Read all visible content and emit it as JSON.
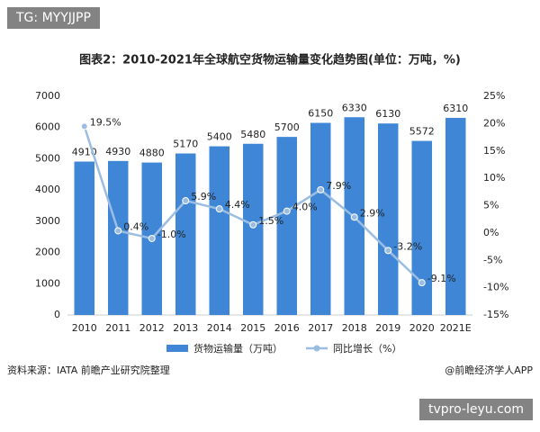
{
  "watermark": "TG: MYYJJPP",
  "source": "资料来源：IATA 前瞻产业研究院整理",
  "credit": "@前瞻经济学人APP",
  "footer_badge": "tvpro-leyu.com",
  "chart_data": {
    "type": "bar_line",
    "title": "图表2：2010-2021年全球航空货物运输量变化趋势图(单位：万吨，%)",
    "categories": [
      "2010",
      "2011",
      "2012",
      "2013",
      "2014",
      "2015",
      "2016",
      "2017",
      "2018",
      "2019",
      "2020",
      "2021E"
    ],
    "series": [
      {
        "name": "货物运输量（万吨）",
        "color": "#3f87d6",
        "type": "bar",
        "values": [
          4910,
          4930,
          4880,
          5170,
          5400,
          5480,
          5700,
          6150,
          6330,
          6130,
          5572,
          6310
        ]
      },
      {
        "name": "同比增长（%）",
        "color": "#9cbde2",
        "type": "line",
        "axis": "y2",
        "values": [
          19.5,
          0.4,
          -1.0,
          5.9,
          4.4,
          1.5,
          4.0,
          7.9,
          2.9,
          -3.2,
          -9.1,
          null
        ],
        "value_labels": [
          "19.5%",
          "0.4%",
          "-1.0%",
          "5.9%",
          "4.4%",
          "1.5%",
          "4.0%",
          "7.9%",
          "2.9%",
          "-3.2%",
          "-9.1%",
          null
        ]
      }
    ],
    "ylim": [
      0,
      7000
    ],
    "yticks": [
      0,
      1000,
      2000,
      3000,
      4000,
      5000,
      6000,
      7000
    ],
    "y2lim": [
      -15,
      25
    ],
    "y2ticks": [
      {
        "value": -15,
        "label": "-15%"
      },
      {
        "value": -10,
        "label": "-10%"
      },
      {
        "value": -5,
        "label": "-5%"
      },
      {
        "value": 0,
        "label": "0%"
      },
      {
        "value": 5,
        "label": "5%"
      },
      {
        "value": 10,
        "label": "10%"
      },
      {
        "value": 15,
        "label": "15%"
      },
      {
        "value": 20,
        "label": "20%"
      },
      {
        "value": 25,
        "label": "25%"
      }
    ]
  }
}
